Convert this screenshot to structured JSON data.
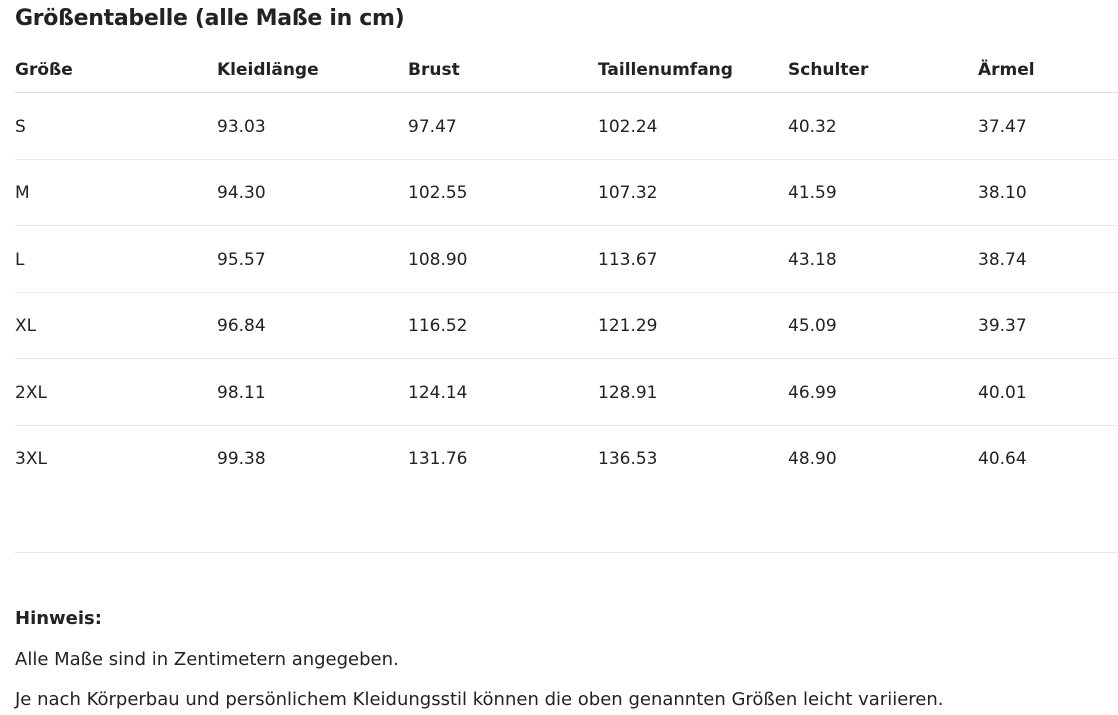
{
  "title": "Größentabelle (alle Maße in cm)",
  "table": {
    "headers": [
      "Größe",
      "Kleidlänge",
      "Brust",
      "Taillenumfang",
      "Schulter",
      "Ärmel"
    ],
    "rows": [
      [
        "S",
        "93.03",
        "97.47",
        "102.24",
        "40.32",
        "37.47"
      ],
      [
        "M",
        "94.30",
        "102.55",
        "107.32",
        "41.59",
        "38.10"
      ],
      [
        "L",
        "95.57",
        "108.90",
        "113.67",
        "43.18",
        "38.74"
      ],
      [
        "XL",
        "96.84",
        "116.52",
        "121.29",
        "45.09",
        "39.37"
      ],
      [
        "2XL",
        "98.11",
        "124.14",
        "128.91",
        "46.99",
        "40.01"
      ],
      [
        "3XL",
        "99.38",
        "131.76",
        "136.53",
        "48.90",
        "40.64"
      ]
    ]
  },
  "note": {
    "heading": "Hinweis:",
    "lines": [
      "Alle Maße sind in Zentimetern angegeben.",
      "Je nach Körperbau und persönlichem Kleidungsstil können die oben genannten Größen leicht variieren."
    ]
  }
}
